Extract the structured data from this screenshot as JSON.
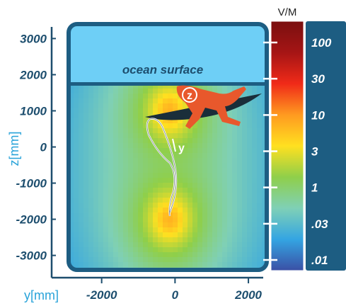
{
  "chart_data": {
    "type": "heatmap",
    "title": "",
    "xlabel": "y[mm]",
    "ylabel": "z[mm]",
    "xlim": [
      -2900,
      2500
    ],
    "ylim": [
      -3400,
      3400
    ],
    "x_ticks": [
      "-2000",
      "0",
      "2000"
    ],
    "x_tick_values": [
      -2000,
      0,
      2000
    ],
    "y_ticks": [
      "3000",
      "2000",
      "1000",
      "0",
      "-1000",
      "-2000",
      "-3000"
    ],
    "y_tick_values": [
      3000,
      2000,
      1000,
      0,
      -1000,
      -2000,
      -3000
    ],
    "annotations": {
      "ocean_surface": "ocean surface",
      "z_marker": "z",
      "y_marker": "y",
      "ocean_surface_z": 1750
    },
    "field_sources": [
      {
        "y": -150,
        "z": -2000
      },
      {
        "y": -150,
        "z": 1000
      }
    ],
    "colorbar": {
      "unit": "V/M",
      "scale": "log",
      "tick_labels": [
        "100",
        "30",
        "10",
        "3",
        "1",
        ".03",
        ".01"
      ],
      "colors_low_to_high": [
        "#3a4fa5",
        "#34a5e2",
        "#7fd0b6",
        "#8fcf4a",
        "#ffe020",
        "#ff9a20",
        "#f02a18",
        "#a51515",
        "#7a0f0f"
      ]
    }
  },
  "colors": {
    "frame": "#1d5d82",
    "ocean": "#6ecff6",
    "axis": "#1d4e6e",
    "surfer": "#e8582c",
    "board": "#1a2e3a"
  }
}
